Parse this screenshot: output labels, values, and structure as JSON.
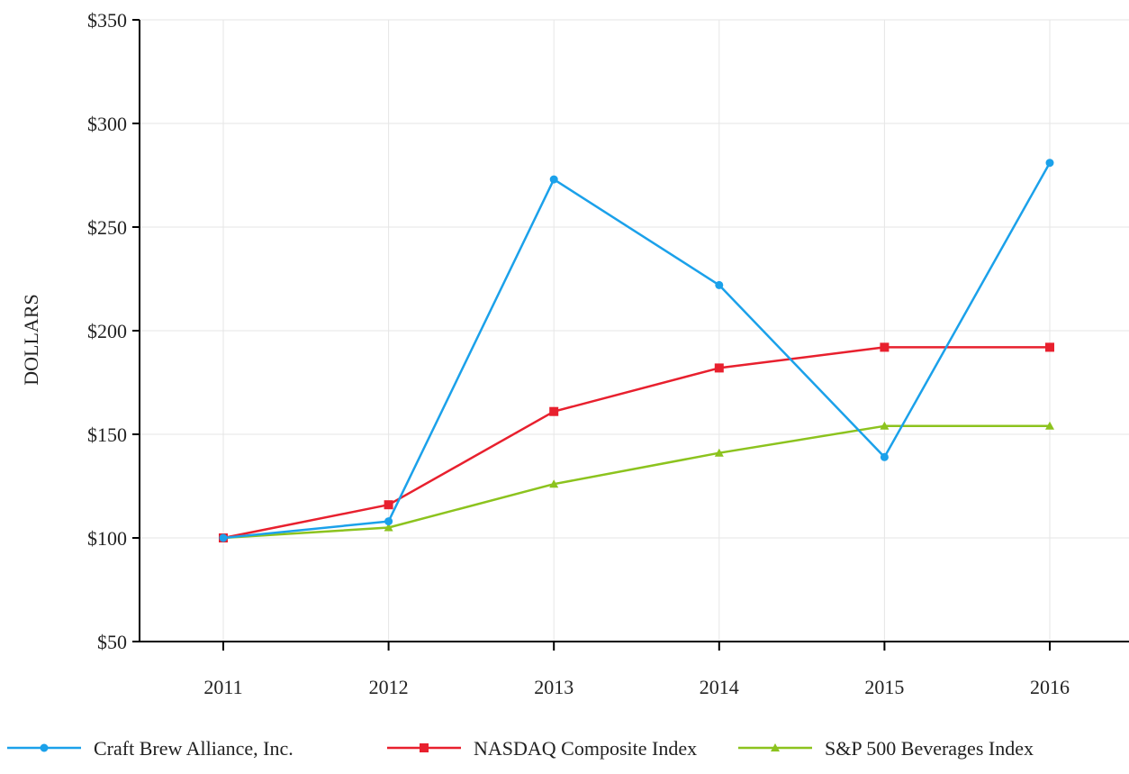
{
  "chart_data": {
    "type": "line",
    "title": "",
    "xlabel": "",
    "ylabel": "DOLLARS",
    "categories": [
      "2011",
      "2012",
      "2013",
      "2014",
      "2015",
      "2016"
    ],
    "ylim": [
      50,
      350
    ],
    "yticks": [
      50,
      100,
      150,
      200,
      250,
      300,
      350
    ],
    "ytick_labels": [
      "$50",
      "$100",
      "$150",
      "$200",
      "$250",
      "$300",
      "$350"
    ],
    "grid": true,
    "legend_position": "bottom",
    "series": [
      {
        "name": "Craft Brew Alliance, Inc.",
        "color": "#1ba1ea",
        "marker": "circle",
        "values": [
          100,
          108,
          273,
          222,
          139,
          281
        ]
      },
      {
        "name": "NASDAQ Composite Index",
        "color": "#e8202e",
        "marker": "square",
        "values": [
          100,
          116,
          161,
          182,
          192,
          192
        ]
      },
      {
        "name": "S&P 500 Beverages Index",
        "color": "#8cc31e",
        "marker": "triangle",
        "values": [
          100,
          105,
          126,
          141,
          154,
          154
        ]
      }
    ]
  }
}
